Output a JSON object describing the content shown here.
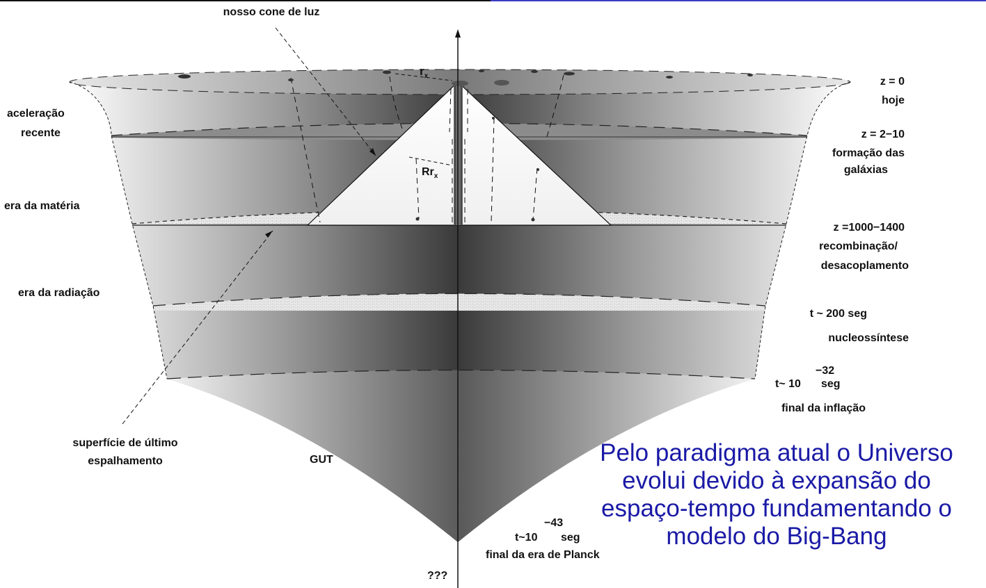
{
  "labels": {
    "light_cone": "nosso cone de luz",
    "z0": "z = 0",
    "today": "hoje",
    "recent_acceleration_1": "aceleração",
    "recent_acceleration_2": "recente",
    "z_galaxies": "z = 2−10",
    "galaxy_formation_1": "formação das",
    "galaxy_formation_2": "galáxias",
    "matter_era": "era da matéria",
    "z_recombination": "z =1000−1400",
    "recombination": "recombinação/",
    "decoupling": "desacoplamento",
    "radiation_era": "era da radiação",
    "t_200": "t ~ 200 seg",
    "nucleosynthesis": "nucleossíntese",
    "t_inflation_base": "t~ 10",
    "t_inflation_exp": "−32",
    "t_inflation_unit": "seg",
    "end_inflation": "final da inflação",
    "last_scattering_1": "superfície de último",
    "last_scattering_2": "espalhamento",
    "gut": "GUT",
    "t_planck_base": "t~10",
    "t_planck_exp": "−43",
    "t_planck_unit": "seg",
    "end_planck": "final da era de Planck",
    "unknown": "???",
    "r_x": "r",
    "r_x_sub": "x",
    "Rr_x": "Rr",
    "Rr_x_sub": "x"
  },
  "caption": {
    "line1": "Pelo paradigma atual o Universo",
    "line2": "evolui devido à expansão do",
    "line3": "espaço-tempo fundamentando o",
    "line4": "modelo do Big-Bang"
  },
  "colors": {
    "caption": "#1a1aa6",
    "header_right": "#3d3dc4"
  }
}
